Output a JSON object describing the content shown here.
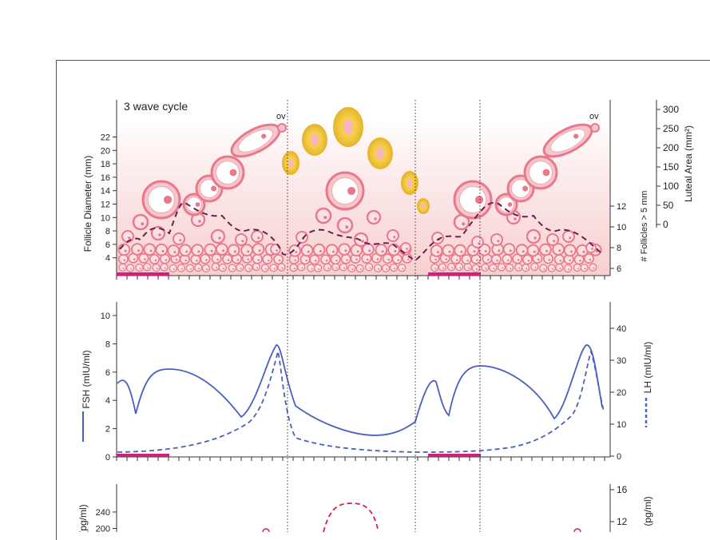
{
  "panel1": {
    "label": "3 wave cycle",
    "ov_left": "ov",
    "ov_right": "ov",
    "ylabel_left": "Follicle Diameter (mm)",
    "yticks_left": [
      "22",
      "20",
      "18",
      "16",
      "14",
      "12",
      "10",
      "8",
      "6",
      "4"
    ],
    "ylabel_mid": "# Follicles > 5 mm",
    "yticks_mid": [
      "12",
      "10",
      "8",
      "6"
    ],
    "ylabel_right": "Luteal Area (mm²)",
    "yticks_right": [
      "300",
      "250",
      "200",
      "150",
      "100",
      "50",
      "0"
    ]
  },
  "panel2": {
    "ylabel_left": "FSH (mIU/ml)",
    "yticks_left": [
      "10",
      "8",
      "6",
      "4",
      "2",
      "0"
    ],
    "ylabel_right": "LH (mIU/ml)",
    "yticks_right": [
      "40",
      "30",
      "20",
      "10",
      "0"
    ]
  },
  "panel3": {
    "ylabel_left": "(pg/ml)",
    "yticks_left": [
      "240",
      "200"
    ],
    "ylabel_right": "(pg/ml)",
    "yticks_right": [
      "16",
      "12"
    ]
  },
  "colors": {
    "fsh": "#4a5fbf",
    "lh": "#4a5fbf",
    "follicle_count": "#6b1f4e",
    "follicle": "#e8788a",
    "corpus_luteum": "#f0c23c",
    "period_bar": "#d0207a",
    "estradiol": "#d02040"
  }
}
